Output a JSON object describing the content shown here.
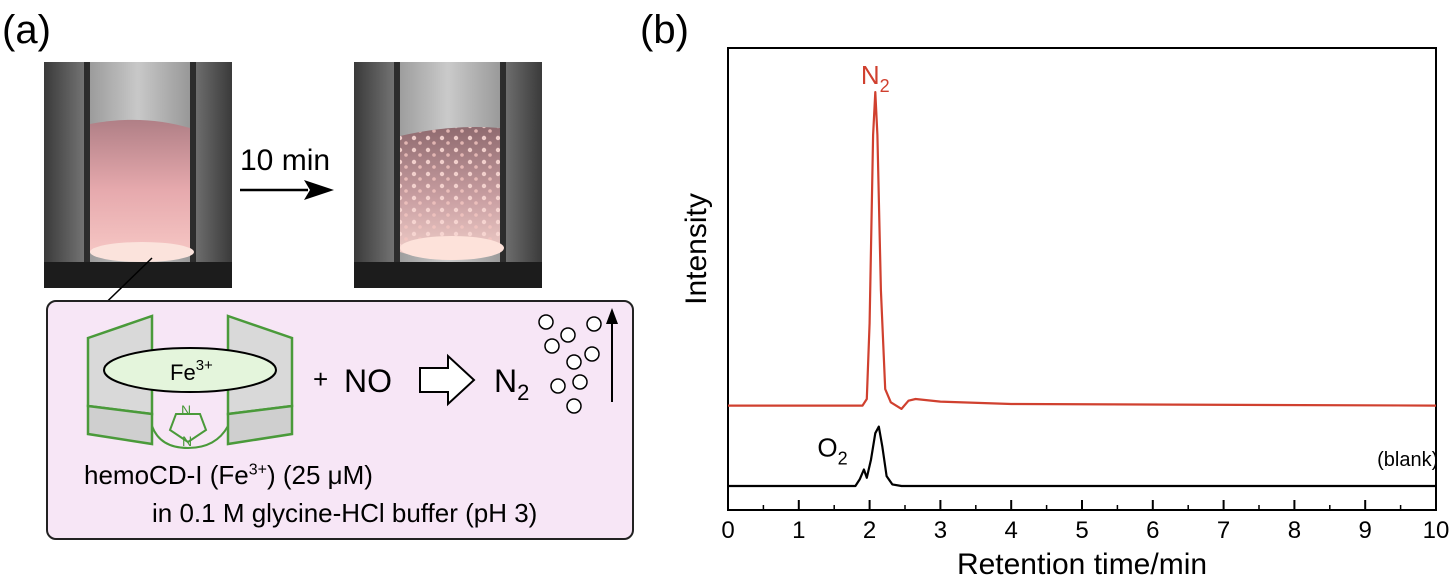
{
  "panel_a": {
    "label": "(a)",
    "time_label": "10 min",
    "complex": {
      "metal": "Fe",
      "metal_charge": "3+",
      "ligand_atom_top": "N",
      "ligand_atom_bottom": "N"
    },
    "reaction": {
      "plus": "+",
      "reactant": "NO",
      "product": "N",
      "product_subscript": "2"
    },
    "caption_line1_prefix": "hemoCD-I (Fe",
    "caption_line1_superscript": "3+",
    "caption_line1_suffix": ") (25 μM)",
    "caption_line2": "in 0.1 M glycine-HCl buffer (pH 3)"
  },
  "panel_b": {
    "label": "(b)"
  },
  "chart_data": {
    "type": "line",
    "xlabel": "Retention time/min",
    "ylabel": "Intensity",
    "xlim": [
      0,
      10
    ],
    "x_ticks": [
      "0",
      "1",
      "2",
      "3",
      "4",
      "5",
      "6",
      "7",
      "8",
      "9",
      "10"
    ],
    "y_ticks": [],
    "grid": false,
    "series": [
      {
        "name": "",
        "color": "#d0402f",
        "offset": 0.3,
        "points": [
          [
            0,
            0
          ],
          [
            1.9,
            0
          ],
          [
            1.96,
            0.02
          ],
          [
            2.0,
            0.25
          ],
          [
            2.05,
            0.82
          ],
          [
            2.08,
            0.95
          ],
          [
            2.11,
            0.82
          ],
          [
            2.16,
            0.35
          ],
          [
            2.22,
            0.05
          ],
          [
            2.3,
            0.01
          ],
          [
            2.45,
            -0.01
          ],
          [
            2.55,
            0.015
          ],
          [
            2.65,
            0.02
          ],
          [
            3.0,
            0.012
          ],
          [
            4.0,
            0.005
          ],
          [
            10,
            0
          ]
        ]
      },
      {
        "name": "",
        "color": "#000000",
        "offset": 0.0,
        "points": [
          [
            0,
            0
          ],
          [
            1.8,
            0
          ],
          [
            1.86,
            0.02
          ],
          [
            1.92,
            0.05
          ],
          [
            1.96,
            0.025
          ],
          [
            2.02,
            0.08
          ],
          [
            2.08,
            0.16
          ],
          [
            2.13,
            0.18
          ],
          [
            2.18,
            0.12
          ],
          [
            2.24,
            0.03
          ],
          [
            2.32,
            0.005
          ],
          [
            2.45,
            0
          ],
          [
            10,
            0
          ]
        ]
      }
    ],
    "annotations": [
      {
        "text": "N",
        "subscript": "2",
        "color": "#d0402f",
        "x": 2.08,
        "series": 0
      },
      {
        "text": "O",
        "subscript": "2",
        "color": "#000000",
        "x": 1.9,
        "series": 1
      },
      {
        "text": "(blank)",
        "color": "#000000",
        "x": 9.6,
        "series": 1
      }
    ]
  }
}
